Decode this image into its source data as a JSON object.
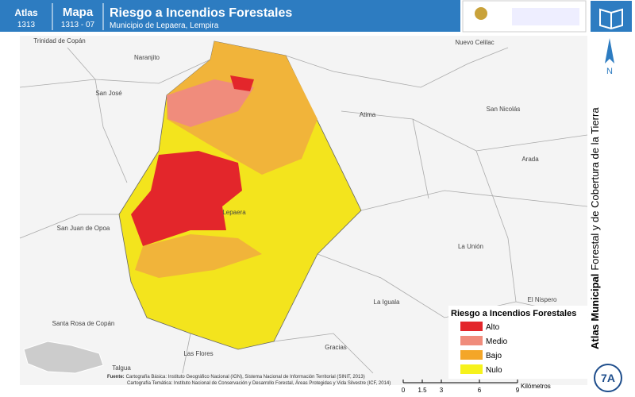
{
  "header": {
    "atlas_label": "Atlas",
    "atlas_number": "1313",
    "map_label": "Mapa",
    "map_number": "1313 - 07",
    "title": "Riesgo a Incendios Forestales",
    "subtitle": "Municipio de Lepaera, Lempira"
  },
  "side": {
    "north": "N",
    "series_title": "Atlas Municipal",
    "series_subtitle": "Forestal y de Cobertura de la Tierra",
    "sheet": "7A"
  },
  "places": [
    "Trinidad de Copán",
    "Naranjito",
    "San José",
    "Atima",
    "Nuevo Celilac",
    "San Nicolás",
    "Arada",
    "Lepaera",
    "San Juan de Opoa",
    "La Unión",
    "La Iguala",
    "El Nispero",
    "Santa Rosa de Copán",
    "Las Flores",
    "Gracias",
    "Talgua"
  ],
  "legend": {
    "title": "Riesgo a Incendios Forestales",
    "items": [
      {
        "name": "Alto",
        "color": "#e3262b"
      },
      {
        "name": "Medio",
        "color": "#f08c7c"
      },
      {
        "name": "Bajo",
        "color": "#f4a628"
      },
      {
        "name": "Nulo",
        "color": "#f6f21c"
      }
    ]
  },
  "scale": {
    "ticks": [
      0,
      1.5,
      3,
      6,
      9
    ],
    "unit": "Kilómetros"
  },
  "sources": {
    "label": "Fuente:",
    "basic": "Cartografía Básica: Instituto Geográfico Nacional (IGN), Sistema Nacional de Información Territorial (SINIT, 2013)",
    "thematic": "Cartografía Temática: Instituto Nacional de Conservación y Desarrollo Forestal, Áreas Protegidas y Vida Silvestre (ICF, 2014)"
  }
}
